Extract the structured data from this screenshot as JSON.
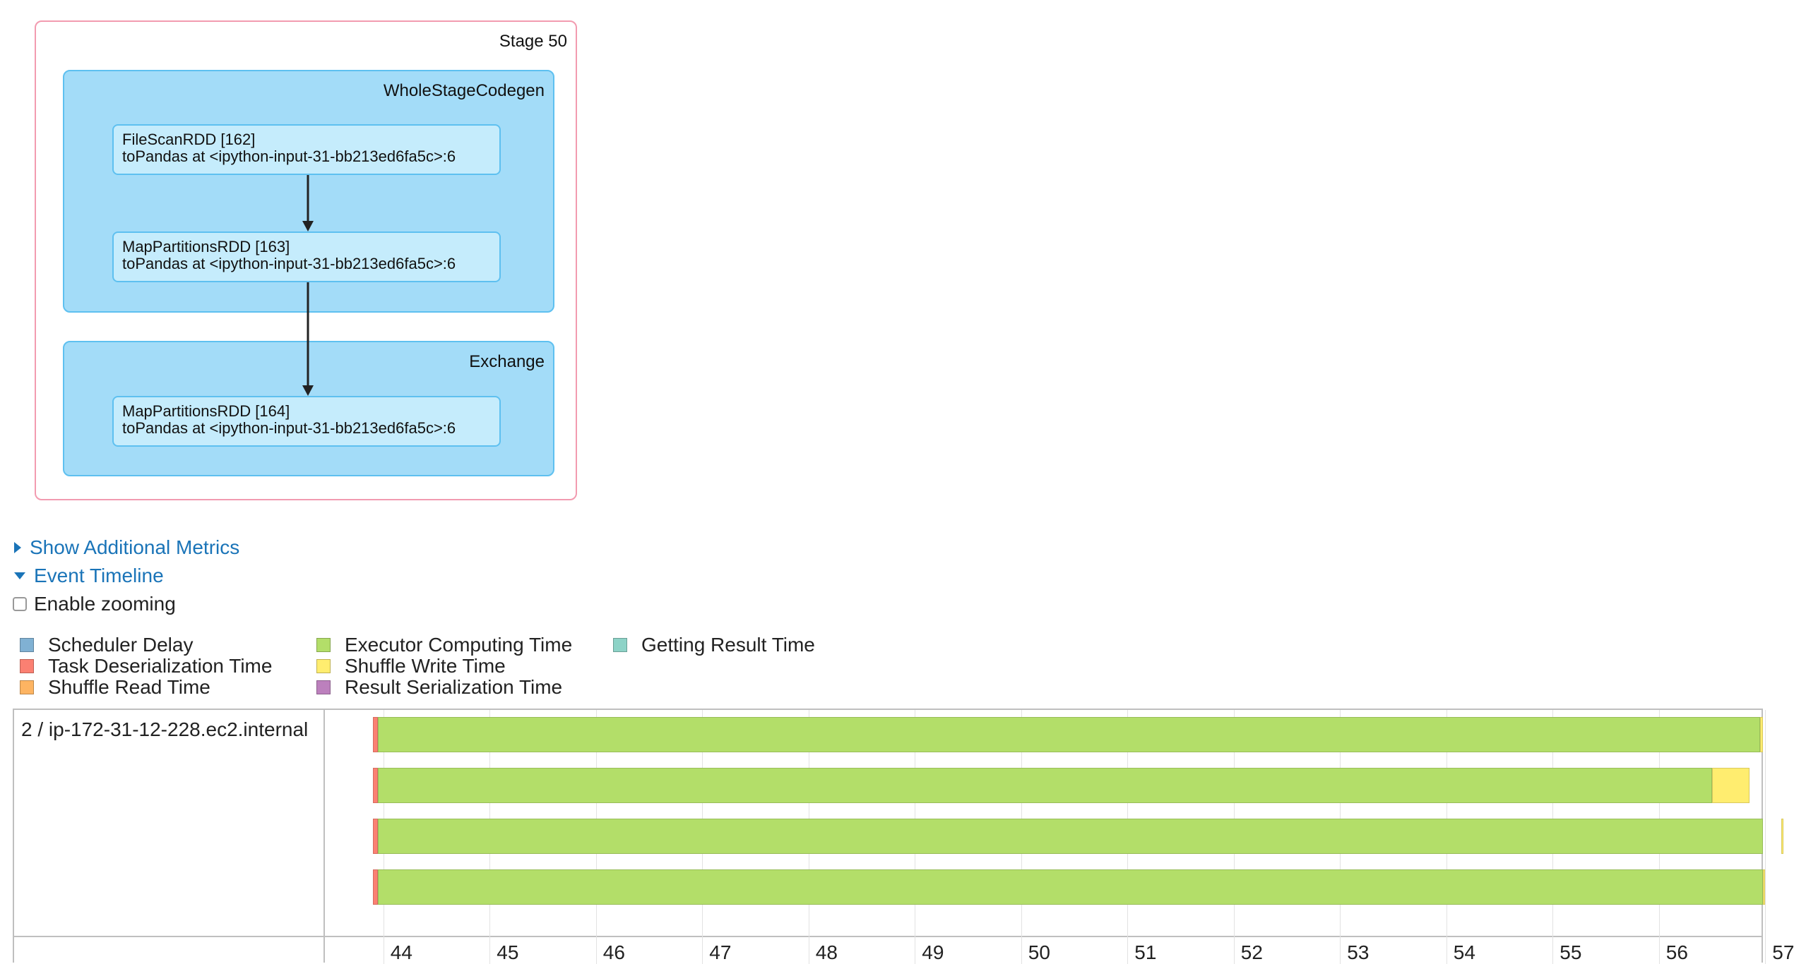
{
  "dag": {
    "stage_label": "Stage 50",
    "clusters": [
      {
        "label": "WholeStageCodegen"
      },
      {
        "label": "Exchange"
      }
    ],
    "nodes": [
      {
        "title": "FileScanRDD [162]",
        "subtitle": "toPandas at <ipython-input-31-bb213ed6fa5c>:6"
      },
      {
        "title": "MapPartitionsRDD [163]",
        "subtitle": "toPandas at <ipython-input-31-bb213ed6fa5c>:6"
      },
      {
        "title": "MapPartitionsRDD [164]",
        "subtitle": "toPandas at <ipython-input-31-bb213ed6fa5c>:6"
      }
    ]
  },
  "toggles": {
    "additional_metrics": "Show Additional Metrics",
    "event_timeline": "Event Timeline",
    "enable_zooming": "Enable zooming"
  },
  "legend": [
    {
      "label": "Scheduler Delay",
      "color": "#80b1d3"
    },
    {
      "label": "Task Deserialization Time",
      "color": "#fb8072"
    },
    {
      "label": "Shuffle Read Time",
      "color": "#fdb462"
    },
    {
      "label": "Executor Computing Time",
      "color": "#b3de69"
    },
    {
      "label": "Shuffle Write Time",
      "color": "#ffed6f"
    },
    {
      "label": "Result Serialization Time",
      "color": "#bc80bd"
    },
    {
      "label": "Getting Result Time",
      "color": "#8dd3c7"
    }
  ],
  "timeline": {
    "executor_label": "2 / ip-172-31-12-228.ec2.internal",
    "ticks": [
      "44",
      "45",
      "46",
      "47",
      "48",
      "49",
      "50",
      "51",
      "52",
      "53",
      "54",
      "55",
      "56",
      "57"
    ],
    "tasks": [
      {
        "start": 43.9,
        "deser": 0.05,
        "compute": 13.0,
        "shuffle_write": 0.3
      },
      {
        "start": 43.9,
        "deser": 0.05,
        "compute": 12.55,
        "shuffle_write": 0.35
      },
      {
        "start": 43.9,
        "deser": 0.05,
        "compute": 13.2,
        "shuffle_write": 0.15
      },
      {
        "start": 43.9,
        "deser": 0.05,
        "compute": 13.03,
        "shuffle_write": 0.3
      }
    ]
  }
}
